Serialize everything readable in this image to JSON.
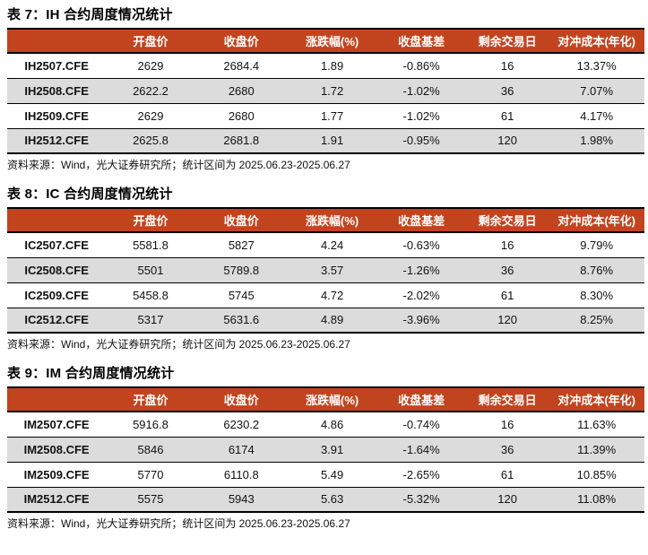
{
  "colors": {
    "header_bg": "#C2441F",
    "header_text": "#FFFFFF",
    "row_alt_bg": "#DCDCDC",
    "row_bg": "#FFFFFF",
    "border": "#000000",
    "title_text": "#000000"
  },
  "columns": [
    "",
    "开盘价",
    "收盘价",
    "涨跌幅(%)",
    "收盘基差",
    "剩余交易日",
    "对冲成本(年化)"
  ],
  "tables": [
    {
      "title": "表 7：IH 合约周度情况统计",
      "rows": [
        [
          "IH2507.CFE",
          "2629",
          "2684.4",
          "1.89",
          "-0.86%",
          "16",
          "13.37%"
        ],
        [
          "IH2508.CFE",
          "2622.2",
          "2680",
          "1.72",
          "-1.02%",
          "36",
          "7.07%"
        ],
        [
          "IH2509.CFE",
          "2629",
          "2680",
          "1.77",
          "-1.02%",
          "61",
          "4.17%"
        ],
        [
          "IH2512.CFE",
          "2625.8",
          "2681.8",
          "1.91",
          "-0.95%",
          "120",
          "1.98%"
        ]
      ],
      "source": "资料来源：Wind，光大证券研究所；统计区间为 2025.06.23-2025.06.27"
    },
    {
      "title": "表 8：IC 合约周度情况统计",
      "rows": [
        [
          "IC2507.CFE",
          "5581.8",
          "5827",
          "4.24",
          "-0.63%",
          "16",
          "9.79%"
        ],
        [
          "IC2508.CFE",
          "5501",
          "5789.8",
          "3.57",
          "-1.26%",
          "36",
          "8.76%"
        ],
        [
          "IC2509.CFE",
          "5458.8",
          "5745",
          "4.72",
          "-2.02%",
          "61",
          "8.30%"
        ],
        [
          "IC2512.CFE",
          "5317",
          "5631.6",
          "4.89",
          "-3.96%",
          "120",
          "8.25%"
        ]
      ],
      "source": "资料来源：Wind，光大证券研究所；统计区间为 2025.06.23-2025.06.27"
    },
    {
      "title": "表 9：IM 合约周度情况统计",
      "rows": [
        [
          "IM2507.CFE",
          "5916.8",
          "6230.2",
          "4.86",
          "-0.74%",
          "16",
          "11.63%"
        ],
        [
          "IM2508.CFE",
          "5846",
          "6174",
          "3.91",
          "-1.64%",
          "36",
          "11.39%"
        ],
        [
          "IM2509.CFE",
          "5770",
          "6110.8",
          "5.49",
          "-2.65%",
          "61",
          "10.85%"
        ],
        [
          "IM2512.CFE",
          "5575",
          "5943",
          "5.63",
          "-5.32%",
          "120",
          "11.08%"
        ]
      ],
      "source": "资料来源：Wind，光大证券研究所；统计区间为 2025.06.23-2025.06.27"
    }
  ]
}
